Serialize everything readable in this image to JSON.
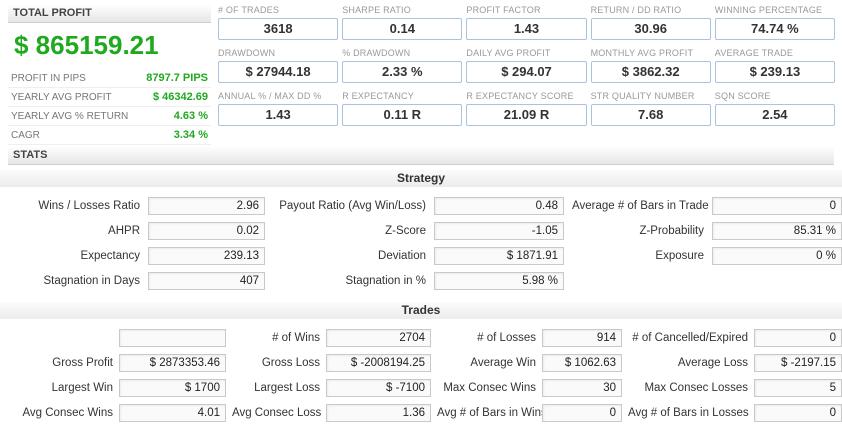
{
  "colors": {
    "profit_green": "#1fa91f",
    "kpi_border_blue": "#a9c4de",
    "field_border_gray": "#c9c9c9"
  },
  "left_panel": {
    "header": "TOTAL PROFIT",
    "total_profit": "$ 865159.21",
    "rows": [
      {
        "label": "PROFIT IN PIPS",
        "value": "8797.7 PIPS"
      },
      {
        "label": "YEARLY AVG PROFIT",
        "value": "$ 46342.69"
      },
      {
        "label": "YEARLY AVG % RETURN",
        "value": "4.63 %"
      },
      {
        "label": "CAGR",
        "value": "3.34 %"
      }
    ],
    "stats_header": "STATS"
  },
  "kpis": {
    "rows": [
      [
        {
          "label": "# OF TRADES",
          "value": "3618"
        },
        {
          "label": "SHARPE RATIO",
          "value": "0.14"
        },
        {
          "label": "PROFIT FACTOR",
          "value": "1.43"
        },
        {
          "label": "RETURN / DD RATIO",
          "value": "30.96"
        },
        {
          "label": "WINNING PERCENTAGE",
          "value": "74.74 %"
        }
      ],
      [
        {
          "label": "DRAWDOWN",
          "value": "$ 27944.18"
        },
        {
          "label": "% DRAWDOWN",
          "value": "2.33 %"
        },
        {
          "label": "DAILY AVG PROFIT",
          "value": "$ 294.07"
        },
        {
          "label": "MONTHLY AVG PROFIT",
          "value": "$ 3862.32"
        },
        {
          "label": "AVERAGE TRADE",
          "value": "$ 239.13"
        }
      ],
      [
        {
          "label": "ANNUAL % / MAX DD %",
          "value": "1.43"
        },
        {
          "label": "R EXPECTANCY",
          "value": "0.11 R"
        },
        {
          "label": "R EXPECTANCY SCORE",
          "value": "21.09 R"
        },
        {
          "label": "STR QUALITY NUMBER",
          "value": "7.68"
        },
        {
          "label": "SQN SCORE",
          "value": "2.54"
        }
      ]
    ]
  },
  "strategy": {
    "title": "Strategy",
    "rows": [
      [
        {
          "label": "Wins / Losses Ratio",
          "value": "2.96"
        },
        {
          "label": "Payout Ratio (Avg Win/Loss)",
          "value": "0.48"
        },
        {
          "label": "Average # of Bars in Trade",
          "value": "0"
        }
      ],
      [
        {
          "label": "AHPR",
          "value": "0.02"
        },
        {
          "label": "Z-Score",
          "value": "-1.05"
        },
        {
          "label": "Z-Probability",
          "value": "85.31 %"
        }
      ],
      [
        {
          "label": "Expectancy",
          "value": "239.13"
        },
        {
          "label": "Deviation",
          "value": "$ 1871.91"
        },
        {
          "label": "Exposure",
          "value": "0 %"
        }
      ],
      [
        {
          "label": "Stagnation in Days",
          "value": "407"
        },
        {
          "label": "Stagnation in %",
          "value": "5.98 %"
        }
      ]
    ]
  },
  "trades": {
    "title": "Trades",
    "rows": [
      [
        {
          "label": "",
          "value": ""
        },
        {
          "label": "# of Wins",
          "value": "2704"
        },
        {
          "label": "# of Losses",
          "value": "914"
        },
        {
          "label": "# of Cancelled/Expired",
          "value": "0"
        }
      ],
      [
        {
          "label": "Gross Profit",
          "value": "$ 2873353.46"
        },
        {
          "label": "Gross Loss",
          "value": "$ -2008194.25"
        },
        {
          "label": "Average Win",
          "value": "$ 1062.63"
        },
        {
          "label": "Average Loss",
          "value": "$ -2197.15"
        }
      ],
      [
        {
          "label": "Largest Win",
          "value": "$ 1700"
        },
        {
          "label": "Largest Loss",
          "value": "$ -7100"
        },
        {
          "label": "Max Consec Wins",
          "value": "30"
        },
        {
          "label": "Max Consec Losses",
          "value": "5"
        }
      ],
      [
        {
          "label": "Avg Consec Wins",
          "value": "4.01"
        },
        {
          "label": "Avg Consec Loss",
          "value": "1.36"
        },
        {
          "label": "Avg # of Bars in Wins",
          "value": "0"
        },
        {
          "label": "Avg # of Bars in Losses",
          "value": "0"
        }
      ]
    ]
  }
}
